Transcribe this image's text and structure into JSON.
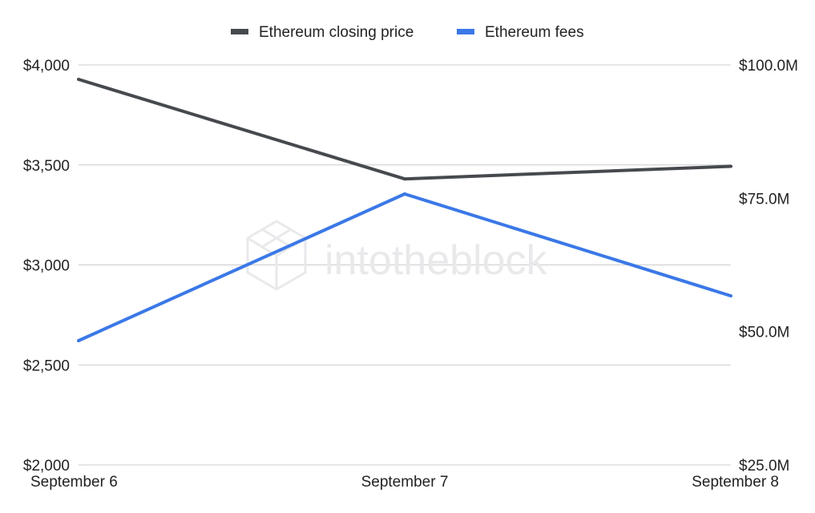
{
  "watermark": {
    "text": "intotheblock"
  },
  "chart_data": {
    "type": "line",
    "categories": [
      "September 6",
      "September 7",
      "September 8"
    ],
    "series": [
      {
        "name": "Ethereum closing price",
        "axis": "left",
        "color": "#46494e",
        "values": [
          3928,
          3430,
          3493
        ]
      },
      {
        "name": "Ethereum fees",
        "axis": "right",
        "color": "#3b78e7",
        "values": [
          48.3,
          75.8,
          56.7
        ]
      }
    ],
    "y_left": {
      "ylim": [
        2000,
        4000
      ],
      "ticks": [
        2000,
        2500,
        3000,
        3500,
        4000
      ],
      "tick_labels": [
        "$2,000",
        "$2,500",
        "$3,000",
        "$3,500",
        "$4,000"
      ]
    },
    "y_right": {
      "ylim": [
        25,
        100
      ],
      "ticks": [
        25,
        50,
        75,
        100
      ],
      "tick_labels": [
        "$25.0M",
        "$50.0M",
        "$75.0M",
        "$100.0M"
      ]
    },
    "grid": true,
    "legend_position": "top-center"
  }
}
